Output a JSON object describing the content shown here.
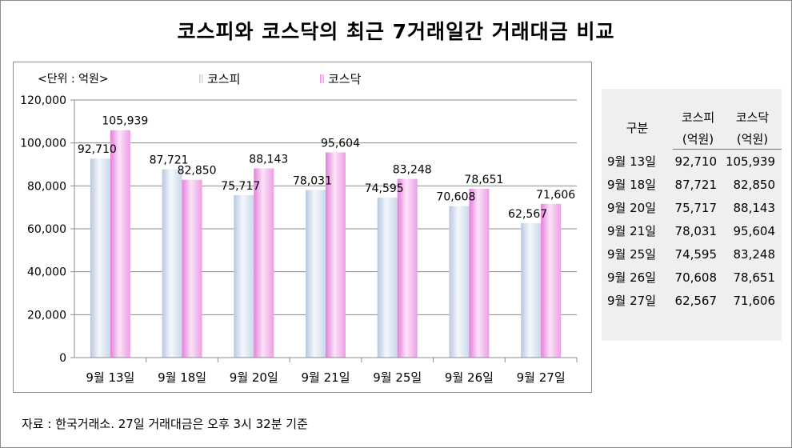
{
  "title": "코스피와 코스닥의 최근 7거래일간 거래대금 비교",
  "unit_label": "<단위 : 억원>",
  "source": "자료 : 한국거래소. 27일 거래대금은 오후 3시 32분 기준",
  "colors": {
    "kospi": "#d6e2f2",
    "kosdaq": "#f3b8ee",
    "grid": "#8c8c8c"
  },
  "chart_data": {
    "type": "bar",
    "categories": [
      "9월 13일",
      "9월 18일",
      "9월 20일",
      "9월 21일",
      "9월 25일",
      "9월 26일",
      "9월 27일"
    ],
    "series": [
      {
        "name": "코스피",
        "values": [
          92710,
          87721,
          75717,
          78031,
          74595,
          70608,
          62567
        ]
      },
      {
        "name": "코스닥",
        "values": [
          105939,
          82850,
          88143,
          95604,
          83248,
          78651,
          71606
        ]
      }
    ],
    "y_ticks": [
      "0",
      "20,000",
      "40,000",
      "60,000",
      "80,000",
      "100,000",
      "120,000"
    ],
    "ylim": [
      0,
      120000
    ],
    "grid": true,
    "legend_position": "top"
  },
  "table": {
    "header_row1": [
      "구분",
      "코스피",
      "코스닥"
    ],
    "header_row2": [
      "",
      "(억원)",
      "(억원)"
    ],
    "rows": [
      [
        "9월 13일",
        "92,710",
        "105,939"
      ],
      [
        "9월 18일",
        "87,721",
        "82,850"
      ],
      [
        "9월 20일",
        "75,717",
        "88,143"
      ],
      [
        "9월 21일",
        "78,031",
        "95,604"
      ],
      [
        "9월 25일",
        "74,595",
        "83,248"
      ],
      [
        "9월 26일",
        "70,608",
        "78,651"
      ],
      [
        "9월 27일",
        "62,567",
        "71,606"
      ]
    ]
  }
}
